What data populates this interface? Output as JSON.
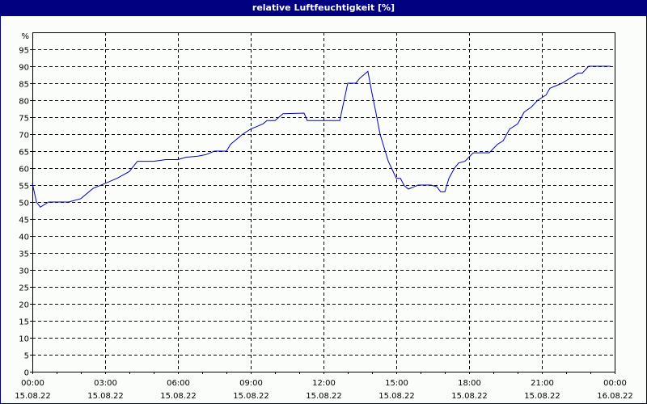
{
  "title": "relative Luftfeuchtigkeit [%]",
  "colors": {
    "titlebar": "#000080",
    "background": "#fbfdfb",
    "line": "#0000c0",
    "grid": "#000000",
    "axis": "#000000"
  },
  "y_axis": {
    "unit_label": "%",
    "ticks": [
      0,
      5,
      10,
      15,
      20,
      25,
      30,
      35,
      40,
      45,
      50,
      55,
      60,
      65,
      70,
      75,
      80,
      85,
      90,
      95
    ]
  },
  "x_axis": {
    "labels": [
      {
        "time": "00:00",
        "date": "15.08.22",
        "hour": 0
      },
      {
        "time": "03:00",
        "date": "15.08.22",
        "hour": 3
      },
      {
        "time": "06:00",
        "date": "15.08.22",
        "hour": 6
      },
      {
        "time": "09:00",
        "date": "15.08.22",
        "hour": 9
      },
      {
        "time": "12:00",
        "date": "15.08.22",
        "hour": 12
      },
      {
        "time": "15:00",
        "date": "15.08.22",
        "hour": 15
      },
      {
        "time": "18:00",
        "date": "15.08.22",
        "hour": 18
      },
      {
        "time": "21:00",
        "date": "15.08.22",
        "hour": 21
      },
      {
        "time": "00:00",
        "date": "16.08.22",
        "hour": 24
      }
    ]
  },
  "chart_data": {
    "type": "line",
    "title": "relative Luftfeuchtigkeit [%]",
    "xlabel": "",
    "ylabel": "%",
    "xlim": [
      0,
      24
    ],
    "ylim": [
      0,
      100
    ],
    "grid": true,
    "legend": null,
    "x_unit": "hours since 15.08.22 00:00",
    "x_tick_labels": [
      "00:00 15.08.22",
      "03:00 15.08.22",
      "06:00 15.08.22",
      "09:00 15.08.22",
      "12:00 15.08.22",
      "15:00 15.08.22",
      "18:00 15.08.22",
      "21:00 15.08.22",
      "00:00 16.08.22"
    ],
    "y_tick_labels": [
      "0",
      "5",
      "10",
      "15",
      "20",
      "25",
      "30",
      "35",
      "40",
      "45",
      "50",
      "55",
      "60",
      "65",
      "70",
      "75",
      "80",
      "85",
      "90",
      "95",
      "%"
    ],
    "series": [
      {
        "name": "relative Luftfeuchtigkeit",
        "x": [
          0.0,
          0.17,
          0.33,
          0.67,
          1.5,
          2.0,
          2.5,
          3.0,
          3.5,
          4.0,
          4.33,
          5.0,
          5.5,
          6.0,
          6.33,
          6.83,
          7.17,
          7.5,
          8.0,
          8.17,
          8.67,
          9.0,
          9.5,
          9.67,
          10.0,
          10.33,
          11.2,
          11.33,
          12.67,
          13.0,
          13.33,
          13.5,
          13.83,
          14.0,
          14.17,
          14.33,
          14.67,
          15.0,
          15.17,
          15.33,
          15.5,
          15.67,
          15.9,
          16.43,
          16.67,
          16.83,
          17.0,
          17.17,
          17.4,
          17.57,
          17.83,
          18.17,
          18.83,
          19.17,
          19.4,
          19.67,
          20.0,
          20.27,
          20.57,
          20.83,
          21.17,
          21.33,
          21.83,
          22.17,
          22.5,
          22.67,
          22.93,
          23.83
        ],
        "values": [
          55.5,
          50,
          48.5,
          50,
          50,
          51,
          54,
          55.5,
          57,
          59,
          62,
          62,
          62.5,
          62.5,
          63.2,
          63.5,
          64,
          65,
          65,
          67,
          70,
          71.5,
          73,
          74,
          74,
          76,
          76.2,
          74,
          74,
          85,
          85,
          86.5,
          88.5,
          82,
          76,
          70,
          62,
          57,
          57,
          54.8,
          53.8,
          54.3,
          55,
          55,
          54.5,
          53,
          53,
          57,
          60,
          61.5,
          62,
          64.5,
          64.5,
          67,
          68,
          71.5,
          73,
          76.5,
          78,
          80,
          81.5,
          83.5,
          85,
          86.5,
          88,
          88,
          90,
          90
        ]
      }
    ]
  }
}
